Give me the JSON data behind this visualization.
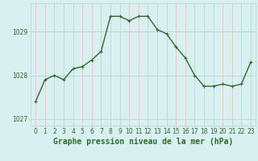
{
  "hours": [
    0,
    1,
    2,
    3,
    4,
    5,
    6,
    7,
    8,
    9,
    10,
    11,
    12,
    13,
    14,
    15,
    16,
    17,
    18,
    19,
    20,
    21,
    22,
    23
  ],
  "pressure": [
    1027.4,
    1027.9,
    1028.0,
    1027.9,
    1028.15,
    1028.2,
    1028.35,
    1028.55,
    1029.35,
    1029.35,
    1029.25,
    1029.35,
    1029.35,
    1029.05,
    1028.95,
    1028.65,
    1028.4,
    1028.0,
    1027.75,
    1027.75,
    1027.8,
    1027.75,
    1027.8,
    1028.3
  ],
  "line_color": "#2d6a2d",
  "marker_color": "#2d6a2d",
  "bg_color": "#d8f0f0",
  "grid_h_color": "#b8dada",
  "grid_v_color": "#e8c8c8",
  "axis_label_color": "#2d6a2d",
  "title": "Graphe pression niveau de la mer (hPa)",
  "ylabel_ticks": [
    1027,
    1028,
    1029
  ],
  "ylim": [
    1026.85,
    1029.65
  ],
  "xlim": [
    -0.5,
    23.5
  ],
  "xlabel_ticks": [
    0,
    1,
    2,
    3,
    4,
    5,
    6,
    7,
    8,
    9,
    10,
    11,
    12,
    13,
    14,
    15,
    16,
    17,
    18,
    19,
    20,
    21,
    22,
    23
  ],
  "tick_fontsize": 5.5,
  "title_fontsize": 7.0,
  "linewidth": 1.0,
  "markersize": 3.0,
  "markeredgewidth": 0.8
}
